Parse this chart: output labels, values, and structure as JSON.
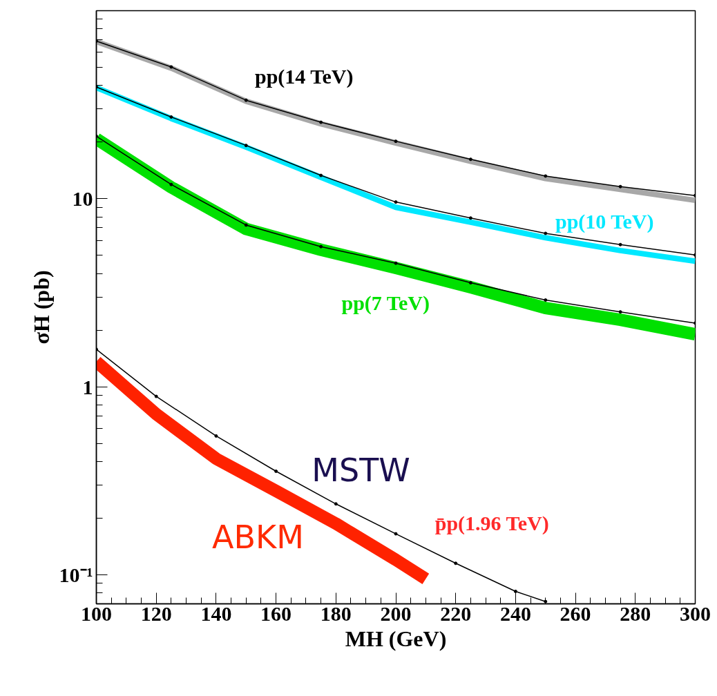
{
  "chart_data": {
    "type": "line",
    "xlabel": "MH (GeV)",
    "ylabel": "σH (pb)",
    "xlim": [
      100,
      300
    ],
    "xticks": [
      100,
      120,
      140,
      160,
      180,
      200,
      220,
      240,
      260,
      280,
      300
    ],
    "ylim": [
      0.07,
      100
    ],
    "yticks": [
      {
        "value": 0.1,
        "label": "10⁻¹"
      },
      1,
      10
    ],
    "log": "y",
    "grid": false,
    "series": [
      {
        "color": "#a8a8a8",
        "marker": "none",
        "x": [
          100,
          125,
          150,
          175,
          200,
          225,
          250,
          275,
          300
        ],
        "values": [
          68.5,
          49.5,
          33,
          25,
          19.8,
          15.8,
          12.8,
          11.2,
          9.8
        ]
      },
      {
        "color": "#00e8ff",
        "marker": "none",
        "x": [
          100,
          125,
          150,
          175,
          200,
          225,
          250,
          275,
          300
        ],
        "values": [
          39,
          26.7,
          18.8,
          13,
          9.0,
          7.5,
          6.2,
          5.3,
          4.65
        ]
      },
      {
        "color": "#00e000",
        "marker": "none",
        "x": [
          100,
          125,
          150,
          175,
          200,
          225,
          250,
          275,
          300
        ],
        "values": [
          20.8,
          11.5,
          6.9,
          5.35,
          4.28,
          3.38,
          2.62,
          2.27,
          1.9
        ]
      },
      {
        "color": "#ff2200",
        "marker": "none",
        "x": [
          100,
          120,
          140,
          160,
          180,
          200,
          210
        ],
        "values": [
          1.36,
          0.715,
          0.414,
          0.279,
          0.187,
          0.12,
          0.095
        ]
      },
      {
        "color": "#000000",
        "marker": "circle",
        "x": [
          100,
          125,
          150,
          175,
          200,
          225,
          250,
          275,
          300
        ],
        "values": [
          68.9,
          50.2,
          33.4,
          25.5,
          20.2,
          16.2,
          13.2,
          11.6,
          10.4
        ]
      },
      {
        "color": "#000000",
        "marker": "circle",
        "x": [
          100,
          125,
          150,
          175,
          200,
          225,
          250,
          275,
          300
        ],
        "values": [
          39.3,
          27.2,
          19.2,
          13.3,
          9.6,
          7.89,
          6.54,
          5.7,
          5.02
        ]
      },
      {
        "color": "#000000",
        "marker": "circle",
        "x": [
          100,
          125,
          150,
          175,
          200,
          225,
          250,
          275,
          300
        ],
        "values": [
          21.5,
          11.9,
          7.24,
          5.56,
          4.54,
          3.57,
          2.89,
          2.5,
          2.18
        ]
      },
      {
        "color": "#000000",
        "marker": "circle",
        "x": [
          100,
          120,
          140,
          160,
          180,
          200,
          220,
          240,
          250
        ],
        "values": [
          1.58,
          0.888,
          0.547,
          0.355,
          0.238,
          0.165,
          0.115,
          0.0815,
          0.072
        ]
      }
    ],
    "annotations": [
      "pp(14 TeV)",
      "pp(10 TeV)",
      "pp(7 TeV)",
      "MSTW",
      "p̄p(1.96 TeV)",
      "ABKM"
    ]
  }
}
